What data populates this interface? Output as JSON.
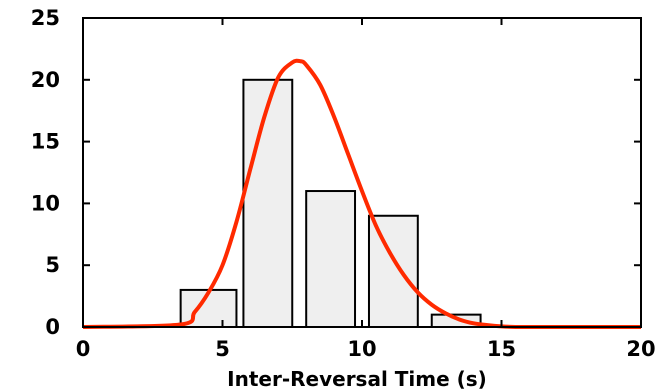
{
  "chart_data": {
    "type": "bar",
    "xlabel": "Inter-Reversal Time (s)",
    "ylabel": "",
    "xlim": [
      0,
      20
    ],
    "ylim": [
      0,
      25
    ],
    "xticks": [
      0,
      5,
      10,
      15,
      20
    ],
    "yticks": [
      0,
      5,
      10,
      15,
      20,
      25
    ],
    "grid": false,
    "bins": [
      {
        "x0": 3.5,
        "x1": 5.5,
        "value": 3
      },
      {
        "x0": 5.75,
        "x1": 7.5,
        "value": 20
      },
      {
        "x0": 8.0,
        "x1": 9.75,
        "value": 11
      },
      {
        "x0": 10.25,
        "x1": 12.0,
        "value": 9
      },
      {
        "x0": 12.5,
        "x1": 14.25,
        "value": 1
      }
    ],
    "fit_curve": {
      "type": "line",
      "color": "#ff2a00",
      "x": [
        0,
        3.5,
        4.0,
        4.5,
        5.0,
        5.5,
        6.0,
        6.5,
        7.0,
        7.5,
        7.8,
        8.0,
        8.5,
        9.0,
        9.5,
        10.0,
        10.5,
        11.0,
        11.5,
        12.0,
        12.5,
        13.0,
        13.5,
        14.0,
        14.5,
        15.0,
        15.5,
        16.0,
        20.0
      ],
      "y": [
        0,
        0.2,
        1.2,
        2.8,
        5.0,
        8.5,
        12.8,
        17.0,
        20.2,
        21.4,
        21.5,
        21.2,
        19.6,
        17.0,
        14.0,
        11.0,
        8.2,
        6.0,
        4.2,
        2.8,
        1.8,
        1.1,
        0.6,
        0.3,
        0.15,
        0.05,
        0,
        0,
        0
      ]
    },
    "bar_fill": "#efefef",
    "bar_stroke": "#000000"
  }
}
